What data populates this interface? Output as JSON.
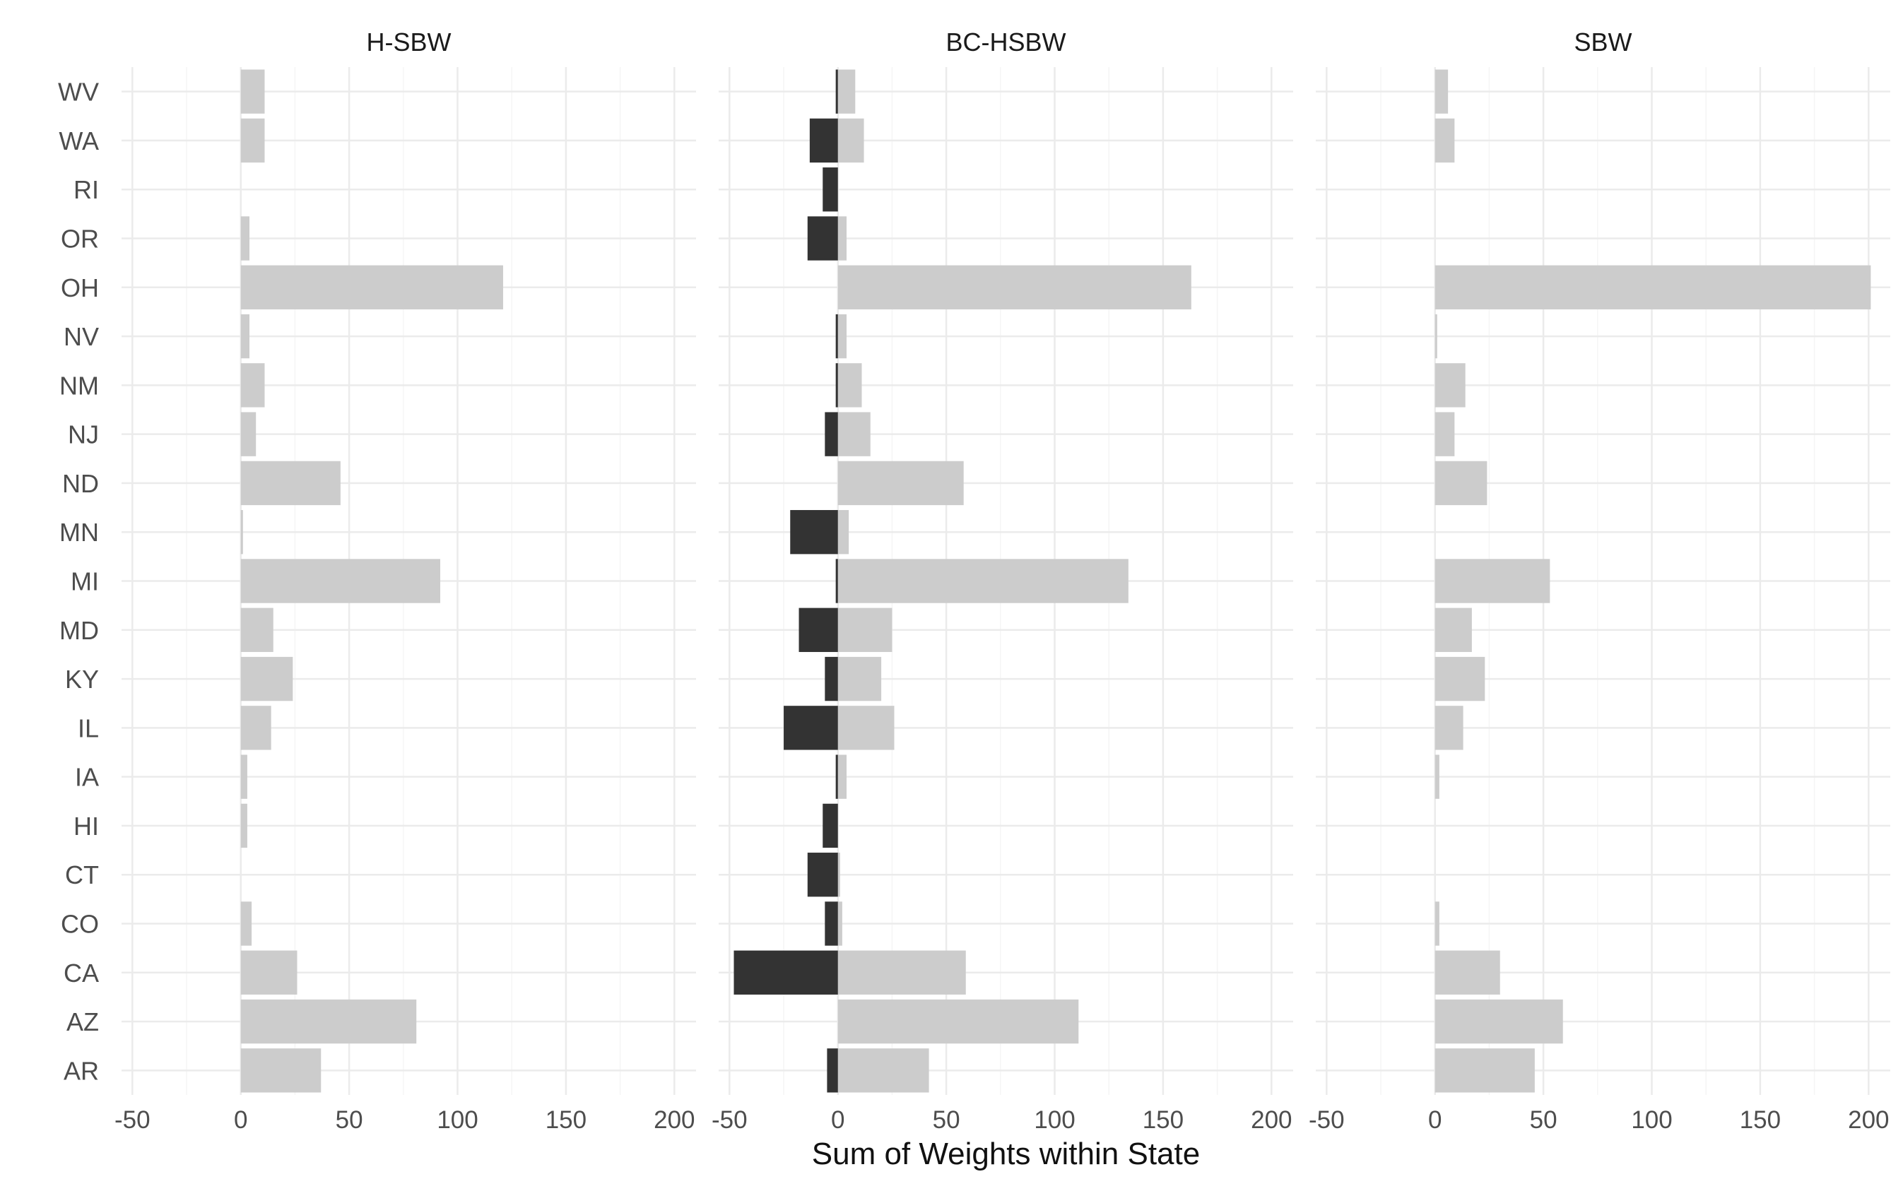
{
  "chart_data": {
    "type": "bar",
    "orientation": "horizontal",
    "layout": "faceted",
    "xlabel": "Sum of Weights within State",
    "ylabel": "",
    "xlim": [
      -55,
      210
    ],
    "x_ticks": [
      -50,
      0,
      50,
      100,
      150,
      200
    ],
    "x_tick_labels": [
      "-50",
      "0",
      "50",
      "100",
      "150",
      "200"
    ],
    "grid": true,
    "legend": "none",
    "colors": {
      "positive": "#cccccc",
      "negative": "#333333",
      "grid_major": "#ebebeb",
      "grid_minor": "#f5f5f5"
    },
    "categories": [
      "WV",
      "WA",
      "RI",
      "OR",
      "OH",
      "NV",
      "NM",
      "NJ",
      "ND",
      "MN",
      "MI",
      "MD",
      "KY",
      "IL",
      "IA",
      "HI",
      "CT",
      "CO",
      "CA",
      "AZ",
      "AR"
    ],
    "facets": [
      {
        "title": "H-SBW",
        "positive": [
          11,
          11,
          0,
          4,
          121,
          4,
          11,
          7,
          46,
          1,
          92,
          15,
          24,
          14,
          3,
          3,
          0,
          5,
          26,
          81,
          37
        ],
        "negative": [
          0,
          0,
          0,
          0,
          0,
          0,
          0,
          0,
          0,
          0,
          0,
          0,
          0,
          0,
          0,
          0,
          0,
          0,
          0,
          0,
          0
        ]
      },
      {
        "title": "BC-HSBW",
        "positive": [
          8,
          12,
          0,
          4,
          163,
          4,
          11,
          15,
          58,
          5,
          134,
          25,
          20,
          26,
          4,
          0,
          1,
          2,
          59,
          111,
          42
        ],
        "negative": [
          -1,
          -13,
          -7,
          -14,
          0,
          -1,
          -1,
          -6,
          0,
          -22,
          -1,
          -18,
          -6,
          -25,
          -1,
          -7,
          -14,
          -6,
          -48,
          0,
          -5
        ]
      },
      {
        "title": "SBW",
        "positive": [
          6,
          9,
          0,
          0,
          201,
          1,
          14,
          9,
          24,
          0,
          53,
          17,
          23,
          13,
          2,
          0,
          0,
          2,
          30,
          59,
          46
        ],
        "negative": [
          0,
          0,
          0,
          0,
          0,
          0,
          0,
          0,
          0,
          0,
          0,
          0,
          0,
          0,
          0,
          0,
          0,
          0,
          0,
          0,
          0
        ]
      }
    ]
  }
}
